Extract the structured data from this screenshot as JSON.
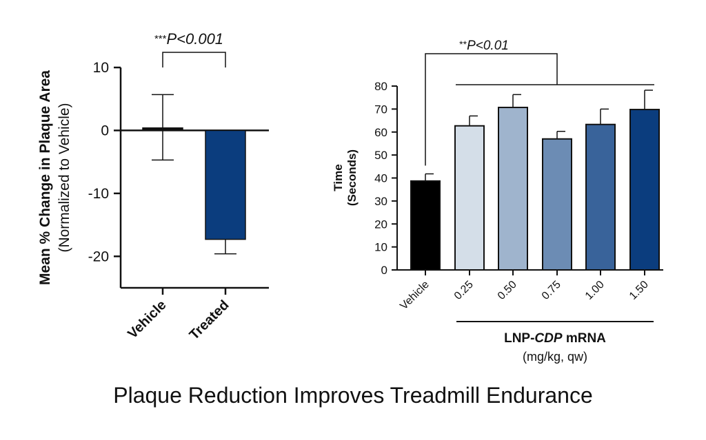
{
  "caption": "Plaque Reduction Improves Treadmill Endurance",
  "colors": {
    "axis": "#111111",
    "vehicle_left": "#111111",
    "treated": "#0b3d7e",
    "vehicle_right": "#000000",
    "dose_025": "#d4dee8",
    "dose_050": "#9fb4cd",
    "dose_075": "#6c8cb4",
    "dose_100": "#39639a",
    "dose_150": "#0b3d7e"
  },
  "chart_data": [
    {
      "type": "bar",
      "title": "",
      "ylabel_main": "Mean % Change in Plaque Area",
      "ylabel_sub": "(Normalized to Vehicle)",
      "xlabel": "",
      "ylim": [
        -25,
        10
      ],
      "yticks": [
        10,
        0,
        -10,
        -20
      ],
      "ytick_labels": [
        "10",
        "0",
        "-10",
        "-20"
      ],
      "categories": [
        "Vehicle",
        "Treated"
      ],
      "values": [
        0.4,
        -17.3
      ],
      "error_low": [
        -4.7,
        -19.6
      ],
      "error_high": [
        5.7,
        -17.3
      ],
      "significance": {
        "label_stars": "***",
        "label_p": "P<0.001",
        "between": [
          "Vehicle",
          "Treated"
        ]
      },
      "grid": false
    },
    {
      "type": "bar",
      "title": "",
      "ylabel_main": "Time",
      "ylabel_sub": "(Seconds)",
      "ylim": [
        0,
        80
      ],
      "yticks": [
        0,
        10,
        20,
        30,
        40,
        50,
        60,
        70,
        80
      ],
      "ytick_labels": [
        "0",
        "10",
        "20",
        "30",
        "40",
        "50",
        "60",
        "70",
        "80"
      ],
      "categories": [
        "Vehicle",
        "0.25",
        "0.50",
        "0.75",
        "1.00",
        "1.50"
      ],
      "values": [
        38.7,
        62.7,
        70.7,
        57.0,
        63.3,
        69.8
      ],
      "error_high": [
        41.8,
        67.0,
        76.3,
        60.3,
        70.0,
        78.2
      ],
      "group_label_prefix": "LNP-",
      "group_label_italic": "CDP",
      "group_label_suffix": " mRNA",
      "group_units": "(mg/kg, qw)",
      "significance": {
        "label_stars": "**",
        "label_p": "P<0.01",
        "between": [
          "Vehicle",
          "0.25–1.50"
        ]
      },
      "grid": false
    }
  ]
}
